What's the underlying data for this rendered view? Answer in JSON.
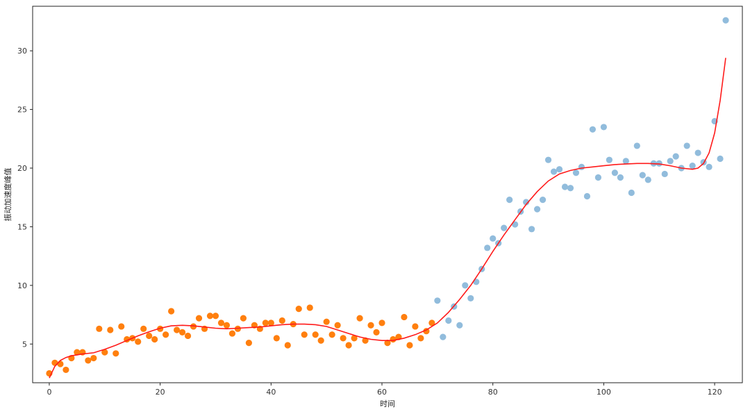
{
  "chart_data": {
    "type": "scatter",
    "xlabel": "时间",
    "ylabel": "振动加速度峰值",
    "xlim": [
      -3,
      125
    ],
    "ylim": [
      1.7,
      33.8
    ],
    "xticks": [
      0,
      20,
      40,
      60,
      80,
      100,
      120
    ],
    "yticks": [
      5,
      10,
      15,
      20,
      25,
      30
    ],
    "grid": false,
    "colors": {
      "segment_a": "#ff7f0e",
      "segment_b": "#91bcdc",
      "fit": "#ff1a1a",
      "axes": "#222222"
    },
    "series": [
      {
        "kind": "scatter",
        "style": "segment_a",
        "x": [
          0,
          1,
          2,
          3,
          4,
          5,
          6,
          7,
          8,
          9,
          10,
          11,
          12,
          13,
          14,
          15,
          16,
          17,
          18,
          19,
          20,
          21,
          22,
          23,
          24,
          25,
          26,
          27,
          28,
          29,
          30,
          31,
          32,
          33,
          34,
          35,
          36,
          37,
          38,
          39,
          40,
          41,
          42,
          43,
          44,
          45,
          46,
          47,
          48,
          49,
          50,
          51,
          52,
          53,
          54,
          55,
          56,
          57,
          58,
          59,
          60,
          61,
          62,
          63,
          64,
          65,
          66,
          67,
          68,
          69
        ],
        "y": [
          2.5,
          3.4,
          3.3,
          2.8,
          3.8,
          4.3,
          4.3,
          3.6,
          3.8,
          6.3,
          4.3,
          6.2,
          4.2,
          6.5,
          5.4,
          5.5,
          5.2,
          6.3,
          5.7,
          5.4,
          6.3,
          5.8,
          7.8,
          6.2,
          6.0,
          5.7,
          6.5,
          7.2,
          6.3,
          7.4,
          7.4,
          6.8,
          6.6,
          5.9,
          6.3,
          7.2,
          5.1,
          6.6,
          6.3,
          6.8,
          6.8,
          5.5,
          7.0,
          4.9,
          6.7,
          8.0,
          5.8,
          8.1,
          5.8,
          5.3,
          6.9,
          5.8,
          6.6,
          5.5,
          4.9,
          5.5,
          7.2,
          5.3,
          6.6,
          6.0,
          6.8,
          5.1,
          5.4,
          5.6,
          7.3,
          4.9,
          6.5,
          5.5,
          6.1,
          6.8
        ]
      },
      {
        "kind": "scatter",
        "style": "segment_b",
        "x": [
          70,
          71,
          72,
          73,
          74,
          75,
          76,
          77,
          78,
          79,
          80,
          81,
          82,
          83,
          84,
          85,
          86,
          87,
          88,
          89,
          90,
          91,
          92,
          93,
          94,
          95,
          96,
          97,
          98,
          99,
          100,
          101,
          102,
          103,
          104,
          105,
          106,
          107,
          108,
          109,
          110,
          111,
          112,
          113,
          114,
          115,
          116,
          117,
          118,
          119,
          120,
          121,
          122
        ],
        "y": [
          8.7,
          5.6,
          7.0,
          8.2,
          6.6,
          10.0,
          8.9,
          10.3,
          11.4,
          13.2,
          14.0,
          13.6,
          14.9,
          17.3,
          15.2,
          16.3,
          17.1,
          14.8,
          16.5,
          17.3,
          20.7,
          19.7,
          19.9,
          18.4,
          18.3,
          19.6,
          20.1,
          17.6,
          23.3,
          19.2,
          23.5,
          20.7,
          19.6,
          19.2,
          20.6,
          17.9,
          21.9,
          19.4,
          19.0,
          20.4,
          20.4,
          19.5,
          20.6,
          21.0,
          20.0,
          21.9,
          20.2,
          21.3,
          20.5,
          20.1,
          24.0,
          20.8,
          32.6
        ]
      },
      {
        "kind": "line",
        "style": "fit",
        "x": [
          0,
          1,
          2,
          3,
          4,
          6,
          8,
          10,
          12,
          14,
          16,
          18,
          20,
          22,
          24,
          26,
          28,
          30,
          32,
          34,
          36,
          38,
          40,
          42,
          44,
          46,
          48,
          50,
          52,
          54,
          56,
          58,
          60,
          62,
          64,
          66,
          68,
          70,
          72,
          74,
          76,
          78,
          80,
          82,
          84,
          86,
          88,
          90,
          92,
          94,
          96,
          98,
          100,
          102,
          104,
          106,
          108,
          110,
          112,
          114,
          116,
          117,
          118,
          119,
          120,
          121,
          122
        ],
        "y": [
          2.1,
          3.1,
          3.6,
          3.85,
          4.0,
          4.15,
          4.25,
          4.55,
          4.9,
          5.3,
          5.7,
          6.05,
          6.35,
          6.55,
          6.6,
          6.55,
          6.45,
          6.35,
          6.3,
          6.35,
          6.4,
          6.45,
          6.55,
          6.65,
          6.7,
          6.7,
          6.65,
          6.5,
          6.2,
          5.9,
          5.6,
          5.4,
          5.3,
          5.3,
          5.5,
          5.8,
          6.2,
          6.8,
          7.7,
          8.8,
          10.0,
          11.4,
          12.9,
          14.3,
          15.6,
          16.9,
          18.0,
          18.9,
          19.5,
          19.8,
          20.0,
          20.1,
          20.2,
          20.3,
          20.35,
          20.4,
          20.4,
          20.35,
          20.2,
          20.0,
          19.9,
          20.0,
          20.4,
          21.3,
          23.0,
          25.8,
          29.4
        ]
      }
    ]
  }
}
